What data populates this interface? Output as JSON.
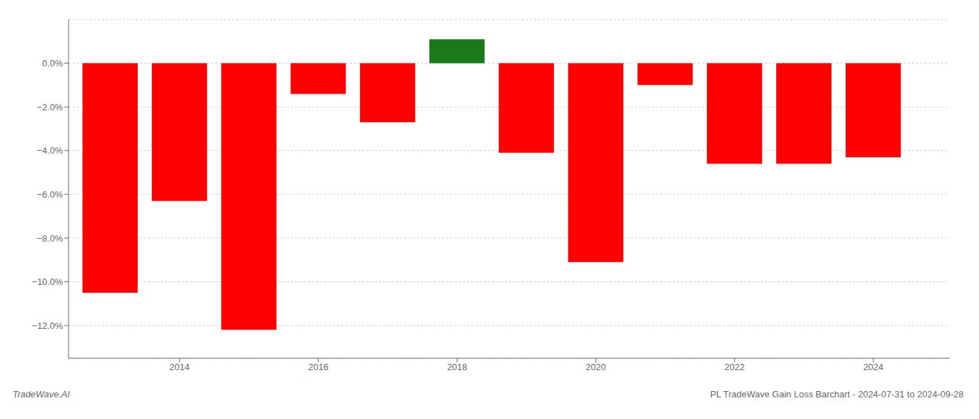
{
  "chart_data": {
    "type": "bar",
    "x": [
      2013,
      2014,
      2015,
      2016,
      2017,
      2018,
      2019,
      2020,
      2021,
      2022,
      2023,
      2024
    ],
    "values": [
      -10.5,
      -6.3,
      -12.2,
      -1.4,
      -2.7,
      1.1,
      -4.1,
      -9.1,
      -1.0,
      -4.6,
      -4.6,
      -4.3
    ],
    "colors": [
      "#ff0000",
      "#ff0000",
      "#ff0000",
      "#ff0000",
      "#ff0000",
      "#1a7a1a",
      "#ff0000",
      "#ff0000",
      "#ff0000",
      "#ff0000",
      "#ff0000",
      "#ff0000"
    ],
    "xlim": [
      2012.4,
      2025.1
    ],
    "xticks": [
      2014,
      2016,
      2018,
      2020,
      2022,
      2024
    ],
    "ylim": [
      -13.5,
      2.0
    ],
    "yticks": [
      {
        "value": 0.0,
        "label": "0.0%"
      },
      {
        "value": -2.0,
        "label": "−2.0%"
      },
      {
        "value": -4.0,
        "label": "−4.0%"
      },
      {
        "value": -6.0,
        "label": "−6.0%"
      },
      {
        "value": -8.0,
        "label": "−8.0%"
      },
      {
        "value": -10.0,
        "label": "−10.0%"
      },
      {
        "value": -12.0,
        "label": "−12.0%"
      }
    ],
    "grid": true,
    "annotations": [
      "TradeWave.AI",
      "PL TradeWave Gain Loss Barchart - 2024-07-31 to 2024-09-28"
    ]
  }
}
